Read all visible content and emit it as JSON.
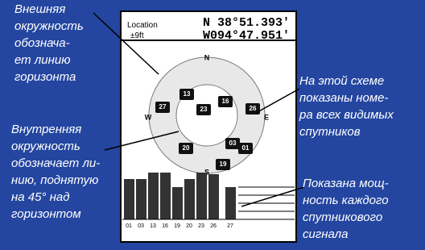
{
  "annotations": [
    {
      "lines": [
        "Внешняя",
        "окружность",
        "обознача-",
        "ет линию",
        "горизонта"
      ]
    },
    {
      "lines": [
        "Внутренняя",
        "окружность",
        "обозначает ли-",
        "нию, поднятую",
        "на 45° над",
        "горизонтом"
      ]
    },
    {
      "lines": [
        "На этой схеме",
        "показаны номе-",
        "ра всех видимых",
        "спутников"
      ]
    },
    {
      "lines": [
        "Показана мощ-",
        "ность каждого",
        "спутникового",
        "сигнала"
      ]
    }
  ],
  "screen": {
    "location_label": "Location",
    "accuracy": "±9ft",
    "latitude": "N  38°51.393'",
    "longitude": "W094°47.951'",
    "compass": {
      "n": "N",
      "e": "E",
      "s": "S",
      "w": "W"
    },
    "satellites": [
      "13",
      "27",
      "23",
      "16",
      "26",
      "20",
      "03",
      "01",
      "19"
    ],
    "bar_labels": [
      "01",
      "03",
      "13",
      "16",
      "19",
      "20",
      "23",
      "26",
      "27"
    ]
  }
}
